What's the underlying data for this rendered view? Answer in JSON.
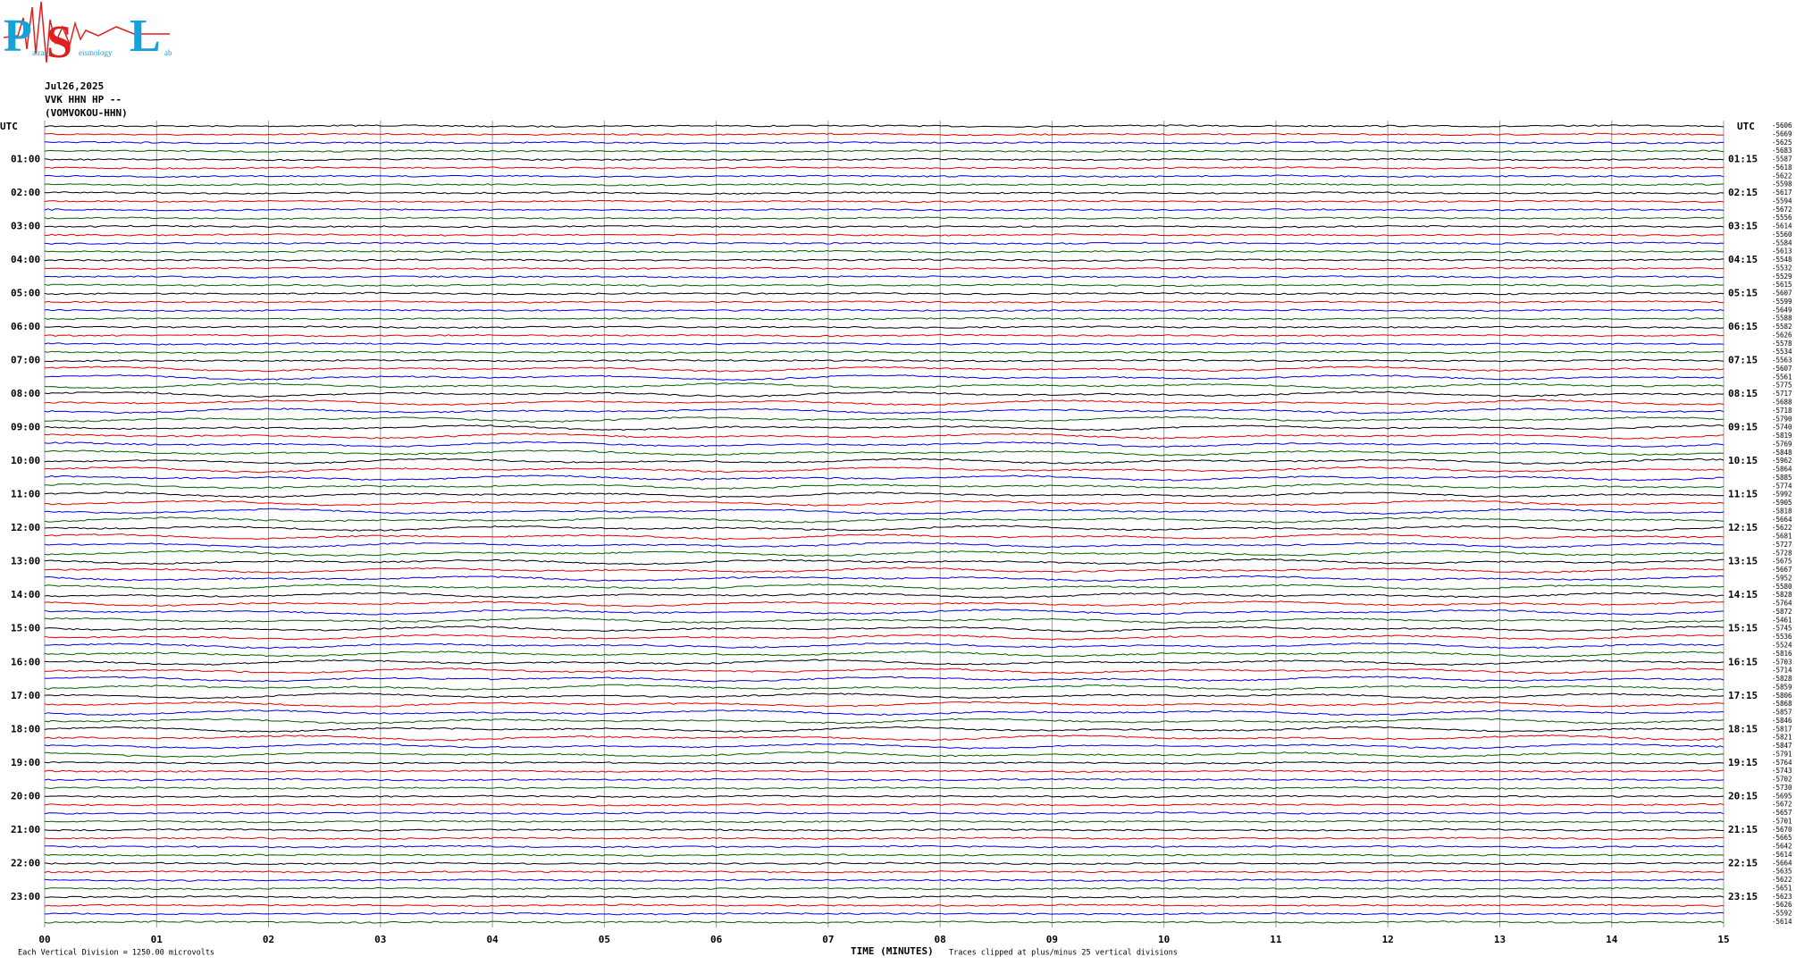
{
  "logo": {
    "letters": [
      "P",
      "S",
      "L"
    ],
    "words": [
      "atras",
      "eismology",
      "ab"
    ]
  },
  "header": {
    "date": "Jul26,2025",
    "channel": "VVK HHN HP --",
    "station": "(VOMVOKOU-HHN)"
  },
  "left_corner": "UTC",
  "right_corner": "UTC",
  "left_labels": [
    "01:00",
    "02:00",
    "03:00",
    "04:00",
    "05:00",
    "06:00",
    "07:00",
    "08:00",
    "09:00",
    "10:00",
    "11:00",
    "12:00",
    "13:00",
    "14:00",
    "15:00",
    "16:00",
    "17:00",
    "18:00",
    "19:00",
    "20:00",
    "21:00",
    "22:00",
    "23:00"
  ],
  "right_labels": [
    "01:15",
    "02:15",
    "03:15",
    "04:15",
    "05:15",
    "06:15",
    "07:15",
    "08:15",
    "09:15",
    "10:15",
    "11:15",
    "12:15",
    "13:15",
    "14:15",
    "15:15",
    "16:15",
    "17:15",
    "18:15",
    "19:15",
    "20:15",
    "21:15",
    "22:15",
    "23:15"
  ],
  "offsets": [
    "-5606",
    "-5669",
    "-5625",
    "-5683",
    "-5587",
    "-5618",
    "-5622",
    "-5598",
    "-5617",
    "-5594",
    "-5672",
    "-5556",
    "-5614",
    "-5560",
    "-5584",
    "-5613",
    "-5548",
    "-5532",
    "-5529",
    "-5615",
    "-5607",
    "-5599",
    "-5649",
    "-5588",
    "-5582",
    "-5626",
    "-5578",
    "-5534",
    "-5563",
    "-5607",
    "-5561",
    "-5775",
    "-5717",
    "-5688",
    "-5718",
    "-5790",
    "-5740",
    "-5819",
    "-5769",
    "-5848",
    "-5962",
    "-5864",
    "-5885",
    "-5774",
    "-5992",
    "-5905",
    "-5818",
    "-5664",
    "-5622",
    "-5681",
    "-5727",
    "-5728",
    "-5675",
    "-5667",
    "-5952",
    "-5580",
    "-5828",
    "-5764",
    "-5872",
    "-5461",
    "-5745",
    "-5536",
    "-5524",
    "-5816",
    "-5703",
    "-5714",
    "-5828",
    "-5859",
    "-5806",
    "-5868",
    "-5857",
    "-5846",
    "-5817",
    "-5821",
    "-5847",
    "-5791",
    "-5764",
    "-5743",
    "-5702",
    "-5730",
    "-5695",
    "-5672",
    "-5657",
    "-5701",
    "-5670",
    "-5665",
    "-5642",
    "-5614",
    "-5664",
    "-5635",
    "-5622",
    "-5651",
    "-5623",
    "-5626",
    "-5592",
    "-5614"
  ],
  "x_ticks": [
    "00",
    "01",
    "02",
    "03",
    "04",
    "05",
    "06",
    "07",
    "08",
    "09",
    "10",
    "11",
    "12",
    "13",
    "14",
    "15"
  ],
  "footer": {
    "scale": "Each Vertical Division = 1250.00 microvolts",
    "axis": "TIME (MINUTES)",
    "clip": "Traces clipped at plus/minus 25 vertical divisions"
  }
}
